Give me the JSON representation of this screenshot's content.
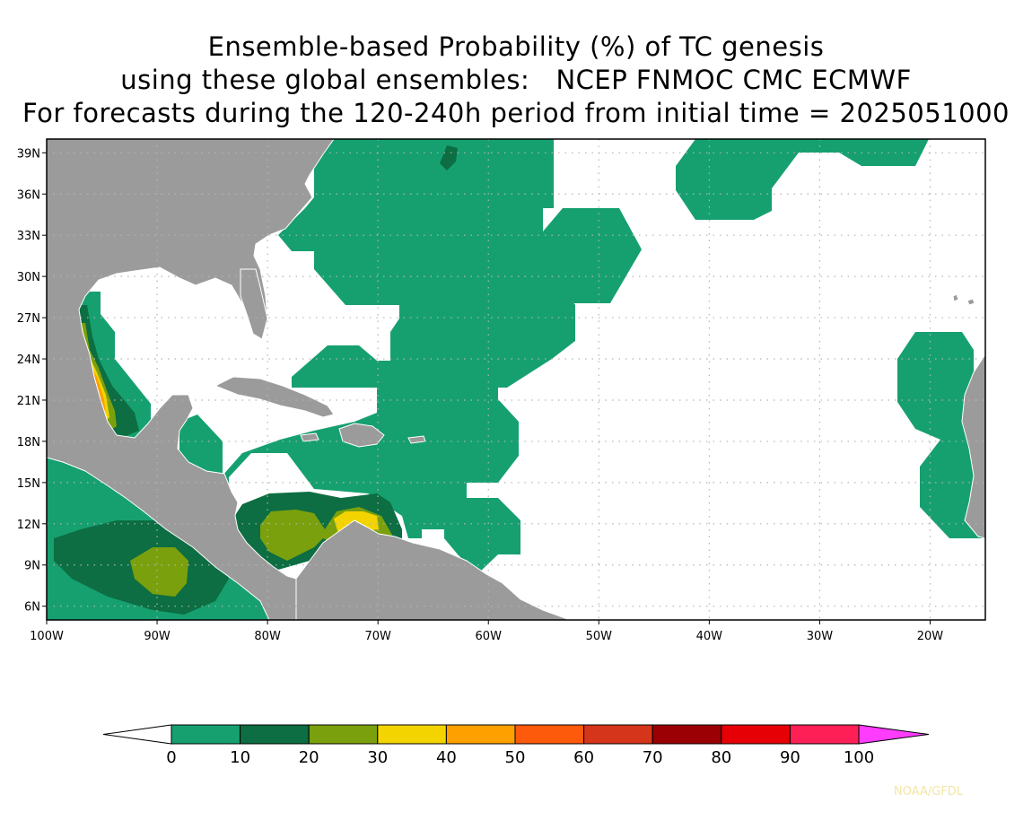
{
  "title": {
    "line1": "Ensemble-based Probability (%) of TC genesis",
    "line2": "using these global ensembles:   NCEP FNMOC CMC ECMWF",
    "line3": "For forecasts during the 120-240h period from initial time = 2025051000"
  },
  "map": {
    "lon_range": [
      -100,
      -15
    ],
    "lat_range": [
      5,
      40
    ],
    "lon_ticks": [
      {
        "value": -100,
        "label": "100W"
      },
      {
        "value": -90,
        "label": "90W"
      },
      {
        "value": -80,
        "label": "80W"
      },
      {
        "value": -70,
        "label": "70W"
      },
      {
        "value": -60,
        "label": "60W"
      },
      {
        "value": -50,
        "label": "50W"
      },
      {
        "value": -40,
        "label": "40W"
      },
      {
        "value": -30,
        "label": "30W"
      },
      {
        "value": -20,
        "label": "20W"
      }
    ],
    "lat_ticks": [
      {
        "value": 39,
        "label": "39N"
      },
      {
        "value": 36,
        "label": "36N"
      },
      {
        "value": 33,
        "label": "33N"
      },
      {
        "value": 30,
        "label": "30N"
      },
      {
        "value": 27,
        "label": "27N"
      },
      {
        "value": 24,
        "label": "24N"
      },
      {
        "value": 21,
        "label": "21N"
      },
      {
        "value": 18,
        "label": "18N"
      },
      {
        "value": 15,
        "label": "15N"
      },
      {
        "value": 12,
        "label": "12N"
      },
      {
        "value": 9,
        "label": "9N"
      },
      {
        "value": 6,
        "label": "6N"
      }
    ],
    "grid": true,
    "land_color": "#9b9b9b"
  },
  "colorbar": {
    "levels": [
      "0",
      "10",
      "20",
      "30",
      "40",
      "50",
      "60",
      "70",
      "80",
      "90",
      "100"
    ],
    "colors": [
      "#16a070",
      "#0c6e42",
      "#7ba00d",
      "#f3d400",
      "#fda000",
      "#fd5a0c",
      "#d5351a",
      "#9b0005",
      "#e60005",
      "#fd1f55"
    ],
    "under_color": "#ffffff",
    "over_color": "#fd3cfd"
  },
  "credit": "NOAA/GFDL"
}
